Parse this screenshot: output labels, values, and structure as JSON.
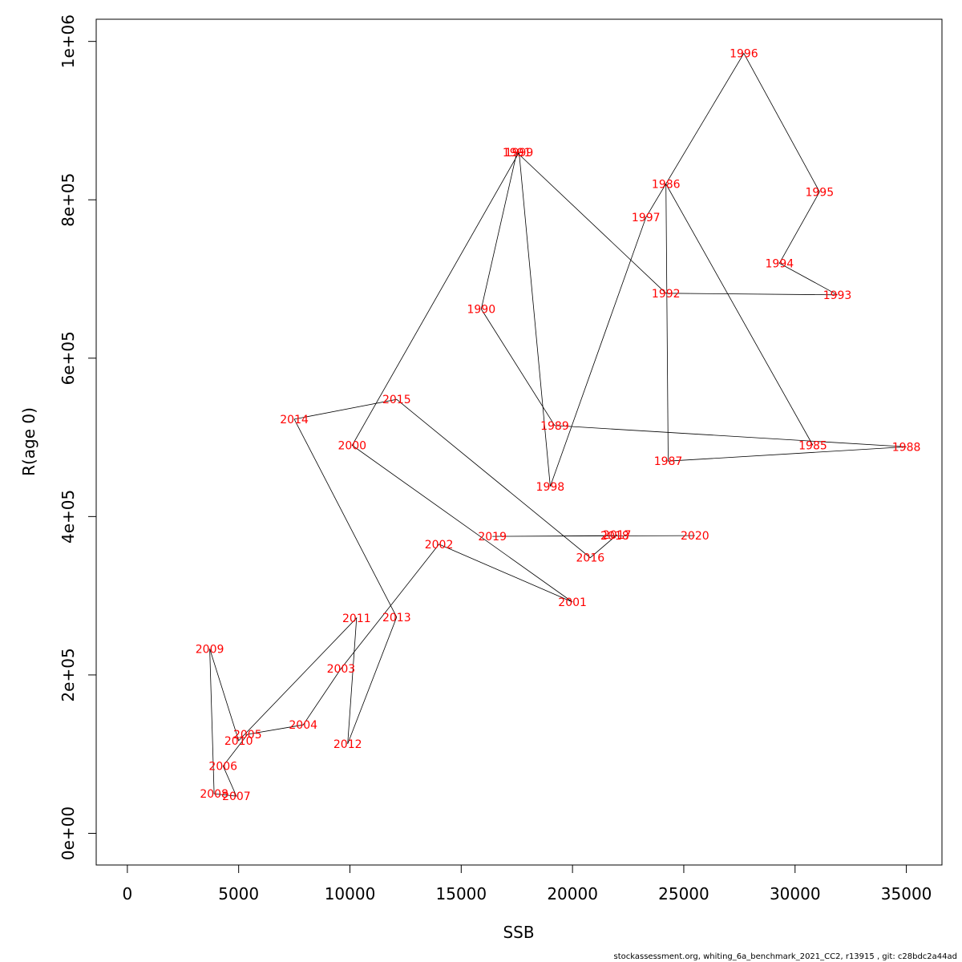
{
  "chart_data": {
    "type": "line",
    "xlabel": "SSB",
    "ylabel": "R(age 0)",
    "xlim": [
      -1400,
      36600
    ],
    "ylim": [
      -40000,
      1028000
    ],
    "x_ticks": [
      0,
      5000,
      10000,
      15000,
      20000,
      25000,
      30000,
      35000
    ],
    "x_tick_labels": [
      "0",
      "5000",
      "10000",
      "15000",
      "20000",
      "25000",
      "30000",
      "35000"
    ],
    "y_ticks": [
      0,
      200000,
      400000,
      600000,
      800000,
      1000000
    ],
    "y_tick_labels": [
      "0e+00",
      "2e+05",
      "4e+05",
      "6e+05",
      "8e+05",
      "1e+06"
    ],
    "grid": false,
    "line_color": "#000000",
    "label_color": "#ff0000",
    "points": [
      {
        "year": "1985",
        "x": 30800,
        "y": 490000
      },
      {
        "year": "1986",
        "x": 24200,
        "y": 820000
      },
      {
        "year": "1987",
        "x": 24300,
        "y": 470000
      },
      {
        "year": "1988",
        "x": 35000,
        "y": 488000
      },
      {
        "year": "1989",
        "x": 19200,
        "y": 515000
      },
      {
        "year": "1990",
        "x": 15900,
        "y": 662000
      },
      {
        "year": "1991",
        "x": 17500,
        "y": 860000
      },
      {
        "year": "1992",
        "x": 24200,
        "y": 682000
      },
      {
        "year": "1993",
        "x": 31900,
        "y": 680000
      },
      {
        "year": "1994",
        "x": 29300,
        "y": 720000
      },
      {
        "year": "1995",
        "x": 31100,
        "y": 810000
      },
      {
        "year": "1996",
        "x": 27700,
        "y": 985000
      },
      {
        "year": "1997",
        "x": 23300,
        "y": 778000
      },
      {
        "year": "1998",
        "x": 19000,
        "y": 438000
      },
      {
        "year": "1999",
        "x": 17600,
        "y": 860000
      },
      {
        "year": "2000",
        "x": 10100,
        "y": 490000
      },
      {
        "year": "2001",
        "x": 20000,
        "y": 292000
      },
      {
        "year": "2002",
        "x": 14000,
        "y": 365000
      },
      {
        "year": "2003",
        "x": 9600,
        "y": 208000
      },
      {
        "year": "2004",
        "x": 7900,
        "y": 137000
      },
      {
        "year": "2005",
        "x": 5400,
        "y": 125000
      },
      {
        "year": "2006",
        "x": 4300,
        "y": 85000
      },
      {
        "year": "2007",
        "x": 4900,
        "y": 47000
      },
      {
        "year": "2008",
        "x": 3900,
        "y": 50000
      },
      {
        "year": "2009",
        "x": 3700,
        "y": 233000
      },
      {
        "year": "2010",
        "x": 5000,
        "y": 117000
      },
      {
        "year": "2011",
        "x": 10300,
        "y": 272000
      },
      {
        "year": "2012",
        "x": 9900,
        "y": 113000
      },
      {
        "year": "2013",
        "x": 12100,
        "y": 273000
      },
      {
        "year": "2014",
        "x": 7500,
        "y": 523000
      },
      {
        "year": "2015",
        "x": 12100,
        "y": 548000
      },
      {
        "year": "2016",
        "x": 20800,
        "y": 348000
      },
      {
        "year": "2017",
        "x": 22000,
        "y": 377000
      },
      {
        "year": "2018",
        "x": 21900,
        "y": 376000
      },
      {
        "year": "2019",
        "x": 16400,
        "y": 375000
      },
      {
        "year": "2020",
        "x": 25500,
        "y": 376000
      }
    ]
  },
  "footer": "stockassessment.org, whiting_6a_benchmark_2021_CC2, r13915 , git: c28bdc2a44ad"
}
